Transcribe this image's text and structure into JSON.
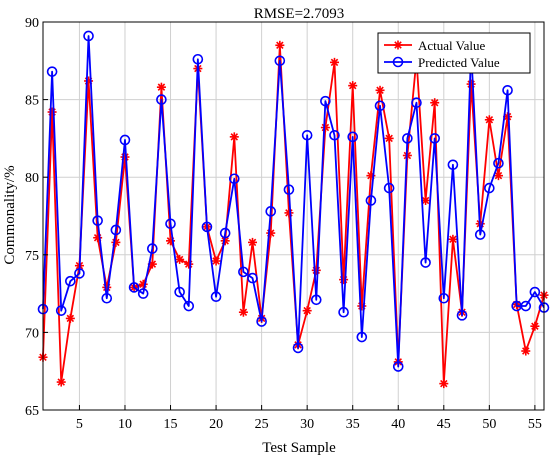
{
  "chart_data": {
    "type": "line",
    "title": "RMSE=2.7093",
    "xlabel": "Test Sample",
    "ylabel": "Commonality/%",
    "xlim": [
      1,
      56
    ],
    "ylim": [
      65,
      90
    ],
    "xticks": [
      5,
      10,
      15,
      20,
      25,
      30,
      35,
      40,
      45,
      50,
      55
    ],
    "yticks": [
      65,
      70,
      75,
      80,
      85,
      90
    ],
    "grid": true,
    "legend_position": "top-right",
    "series": [
      {
        "name": "Actual Value",
        "color": "#ff0000",
        "marker": "asterisk",
        "values": [
          68.4,
          84.2,
          66.8,
          70.9,
          74.3,
          86.2,
          76.1,
          72.9,
          75.8,
          81.3,
          72.9,
          73.1,
          74.4,
          85.8,
          75.9,
          74.7,
          74.4,
          87.0,
          76.8,
          74.6,
          75.9,
          82.6,
          71.3,
          75.8,
          70.9,
          76.4,
          88.5,
          77.7,
          69.2,
          71.4,
          74.0,
          83.2,
          87.4,
          73.4,
          85.9,
          71.7,
          80.1,
          85.6,
          82.5,
          68.1,
          81.4,
          87.6,
          78.5,
          84.8,
          66.7,
          76.0,
          71.3,
          86.0,
          77.0,
          83.7,
          80.1,
          83.9,
          71.8,
          68.8,
          70.4,
          72.4
        ]
      },
      {
        "name": "Predicted Value",
        "color": "#0000ff",
        "marker": "circle",
        "values": [
          71.5,
          86.8,
          71.4,
          73.3,
          73.8,
          89.1,
          77.2,
          72.2,
          76.6,
          82.4,
          72.9,
          72.5,
          75.4,
          85.0,
          77.0,
          72.6,
          71.7,
          87.6,
          76.8,
          72.3,
          76.4,
          79.9,
          73.9,
          73.5,
          70.7,
          77.8,
          87.5,
          79.2,
          69.0,
          82.7,
          72.1,
          84.9,
          82.7,
          71.3,
          82.6,
          69.7,
          78.5,
          84.6,
          79.3,
          67.8,
          82.5,
          84.8,
          74.5,
          82.5,
          72.2,
          80.8,
          71.1,
          88.2,
          76.3,
          79.3,
          80.9,
          85.6,
          71.7,
          71.7,
          72.6,
          71.6
        ]
      }
    ]
  }
}
